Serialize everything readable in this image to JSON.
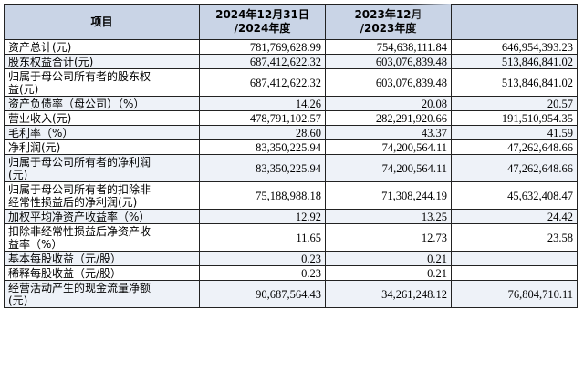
{
  "header": {
    "col0": "项目",
    "col1_line1": "2024年12月31日",
    "col1_line2": "/2024年度",
    "col2_line1": "2023年12月",
    "col2_line2": "/2023年度",
    "col3_line1": "",
    "col3_line2": ""
  },
  "rows": [
    {
      "label": [
        "资产总计(元)"
      ],
      "v1": "781,769,628.99",
      "v2": "754,638,111.84",
      "v3": "646,954,393.23"
    },
    {
      "label": [
        "股东权益合计(元)"
      ],
      "v1": "687,412,622.32",
      "v2": "603,076,839.48",
      "v3": "513,846,841.02"
    },
    {
      "label": [
        "归属于母公司所有者的股东权",
        "益(元)"
      ],
      "v1": "687,412,622.32",
      "v2": "603,076,839.48",
      "v3": "513,846,841.02"
    },
    {
      "label": [
        "资产负债率（母公司）（%）"
      ],
      "v1": "14.26",
      "v2": "20.08",
      "v3": "20.57"
    },
    {
      "label": [
        "营业收入(元)"
      ],
      "v1": "478,791,102.57",
      "v2": "282,291,920.66",
      "v3": "191,510,954.35"
    },
    {
      "label": [
        "毛利率（%）"
      ],
      "v1": "28.60",
      "v2": "43.37",
      "v3": "41.59"
    },
    {
      "label": [
        "净利润(元)"
      ],
      "v1": "83,350,225.94",
      "v2": "74,200,564.11",
      "v3": "47,262,648.66"
    },
    {
      "label": [
        "归属于母公司所有者的净利润",
        "(元)"
      ],
      "v1": "83,350,225.94",
      "v2": "74,200,564.11",
      "v3": "47,262,648.66"
    },
    {
      "label": [
        "归属于母公司所有者的扣除非",
        "经常性损益后的净利润(元)"
      ],
      "v1": "75,188,988.18",
      "v2": "71,308,244.19",
      "v3": "45,632,408.47"
    },
    {
      "label": [
        "加权平均净资产收益率（%）"
      ],
      "v1": "12.92",
      "v2": "13.25",
      "v3": "24.42"
    },
    {
      "label": [
        "扣除非经常性损益后净资产收",
        "益率（%）"
      ],
      "v1": "11.65",
      "v2": "12.73",
      "v3": "23.58"
    },
    {
      "label": [
        "基本每股收益（元/股）"
      ],
      "v1": "0.23",
      "v2": "0.21",
      "v3": ""
    },
    {
      "label": [
        "稀释每股收益（元/股）"
      ],
      "v1": "0.23",
      "v2": "0.21",
      "v3": ""
    },
    {
      "label": [
        "经营活动产生的现金流量净额",
        "(元)"
      ],
      "v1": "90,687,564.43",
      "v2": "34,261,248.12",
      "v3": "76,804,710.11"
    }
  ]
}
